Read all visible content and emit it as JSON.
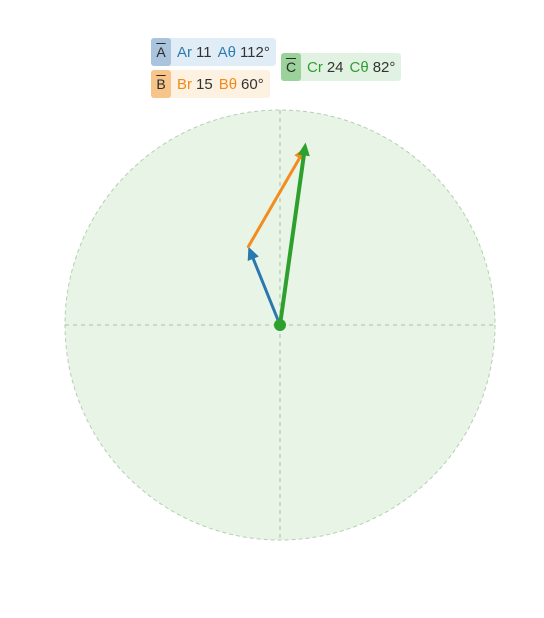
{
  "diagram": {
    "colors": {
      "disc_fill": "#e8f4e6",
      "disc_stroke": "#b5cfb2",
      "axis": "#a8c2a4",
      "a": "#2a78b0",
      "b": "#f28c1e",
      "c": "#2ea02e",
      "origin": "#2ea02e"
    },
    "max_r": 28,
    "vectors": [
      {
        "id": "a",
        "badge": "A",
        "r_symbol": "Ar",
        "r_value": "11",
        "theta_symbol": "Aθ",
        "theta_value": "112°",
        "r": 11,
        "theta": 112
      },
      {
        "id": "b",
        "badge": "B",
        "r_symbol": "Br",
        "r_value": "15",
        "theta_symbol": "Bθ",
        "theta_value": "60°",
        "r": 15,
        "theta": 60
      },
      {
        "id": "c",
        "badge": "C",
        "r_symbol": "Cr",
        "r_value": "24",
        "theta_symbol": "Cθ",
        "theta_value": "82°",
        "r": 24,
        "theta": 82
      }
    ]
  }
}
